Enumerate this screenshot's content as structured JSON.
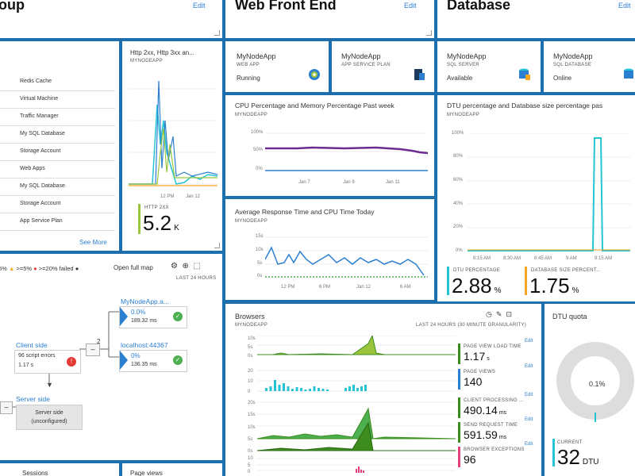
{
  "colors": {
    "accent": "#2b7fd1",
    "tile_border": "#1e6fae",
    "yellow_green": "#9bc53d",
    "cyan": "#24c4d4",
    "orange": "#f5a623",
    "purple": "#6b2d91",
    "green": "#4caf50",
    "pink": "#e0407b",
    "dark_green": "#3c8c1e"
  },
  "resource_group": {
    "title": "oup",
    "edit": "Edit",
    "resources": [
      "Redis Cache",
      "Virtual Machine",
      "Traffic Manager",
      "My SQL Database",
      "Storage Account",
      "Web Apps",
      "My SQL Database",
      "Storage Account",
      "App Service Plan"
    ],
    "see_more": "See More"
  },
  "http_tile": {
    "title": "Http 2xx, Http 3xx an...",
    "subtitle": "MYNODEAPP",
    "x_ticks": [
      "12 PM",
      "Jan 12"
    ],
    "metric_label": "HTTP 2XX",
    "value": "5.2",
    "unit": "K"
  },
  "web_front_end": {
    "title": "Web Front End",
    "edit": "Edit",
    "webapp": {
      "name": "MyNodeApp",
      "type": "WEB APP",
      "status": "Running"
    },
    "plan": {
      "name": "MyNodeApp",
      "type": "APP SERVICE PLAN"
    }
  },
  "database": {
    "title": "Database",
    "edit": "Edit",
    "server": {
      "name": "MyNodeApp",
      "type": "SQL SERVER",
      "status": "Available"
    },
    "db": {
      "name": "MyNodeApp",
      "type": "SQL DATABASE",
      "status": "Online"
    }
  },
  "cpu_tile": {
    "title": "CPU Percentage and Memory Percentage Past week",
    "subtitle": "MYNODEAPP",
    "y_ticks": [
      "100%",
      "50%",
      "0%"
    ],
    "x_ticks": [
      "Jan 7",
      "Jan 9",
      "Jan 11"
    ]
  },
  "response_tile": {
    "title": "Average Response Time and CPU Time Today",
    "subtitle": "MYNODEAPP",
    "y_ticks": [
      "15s",
      "10s",
      "5s",
      "0s"
    ],
    "x_ticks": [
      "12 PM",
      "6 PM",
      "Jan 12",
      "6 AM"
    ]
  },
  "dtu_tile": {
    "title": "DTU percentage and Database size percentage pas",
    "subtitle": "MYNODEAPP",
    "y_ticks": [
      "100%",
      "80%",
      "60%",
      "40%",
      "20%",
      "0%"
    ],
    "x_ticks": [
      "8:15 AM",
      "8:30 AM",
      "8:45 AM",
      "9 AM",
      "9:15 AM"
    ],
    "metric1_label": "DTU PERCENTAGE",
    "metric1_value": "2.88",
    "metric1_unit": "%",
    "metric2_label": "DATABASE SIZE PERCENT...",
    "metric2_value": "1.75",
    "metric2_unit": "%"
  },
  "app_map": {
    "legend_a": "5%",
    "legend_b": ">=5%",
    "legend_c": ">=20% failed",
    "open_full_map": "Open full map",
    "period": "LAST 24 HOURS",
    "node1": {
      "name": "MyNodeApp.a...",
      "pct": "0.0%",
      "time": "189.32 ms"
    },
    "node2": {
      "name": "localhost:44367",
      "pct": "0%",
      "time": "136.35 ms"
    },
    "client": {
      "label": "Client side",
      "errors": "96 script errors",
      "time": "1.17 s"
    },
    "edge_count": "2",
    "server": {
      "label": "Server side",
      "box": "Server side (unconfigured)"
    }
  },
  "browsers": {
    "title": "Browsers",
    "subtitle": "MYNODEAPP",
    "period": "LAST 24 HOURS (30 MINUTE GRANULARITY)",
    "metrics": [
      {
        "label": "PAGE VIEW LOAD TIME",
        "value": "1.17",
        "unit": "s"
      },
      {
        "label": "PAGE VIEWS",
        "value": "140",
        "unit": ""
      },
      {
        "label": "CLIENT PROCESSING ...",
        "value": "490.14",
        "unit": "ms"
      },
      {
        "label": "SEND REQUEST TIME",
        "value": "591.59",
        "unit": "ms"
      },
      {
        "label": "BROWSER EXCEPTIONS",
        "value": "96",
        "unit": ""
      }
    ],
    "edit": "Edit",
    "y_ticks_a": [
      "10s",
      "5s",
      "0s"
    ],
    "y_ticks_b": [
      "20",
      "10",
      "0"
    ],
    "y_ticks_c": [
      "20s",
      "15s",
      "10s",
      "5s",
      "0s"
    ],
    "y_ticks_d": [
      "10",
      "5",
      "0"
    ]
  },
  "dtu_quota": {
    "title": "DTU quota",
    "percent": "0.1%",
    "label": "CURRENT",
    "value": "32",
    "unit": "DTU"
  },
  "bottom": {
    "sessions": "Sessions",
    "page_views": "Page views"
  }
}
